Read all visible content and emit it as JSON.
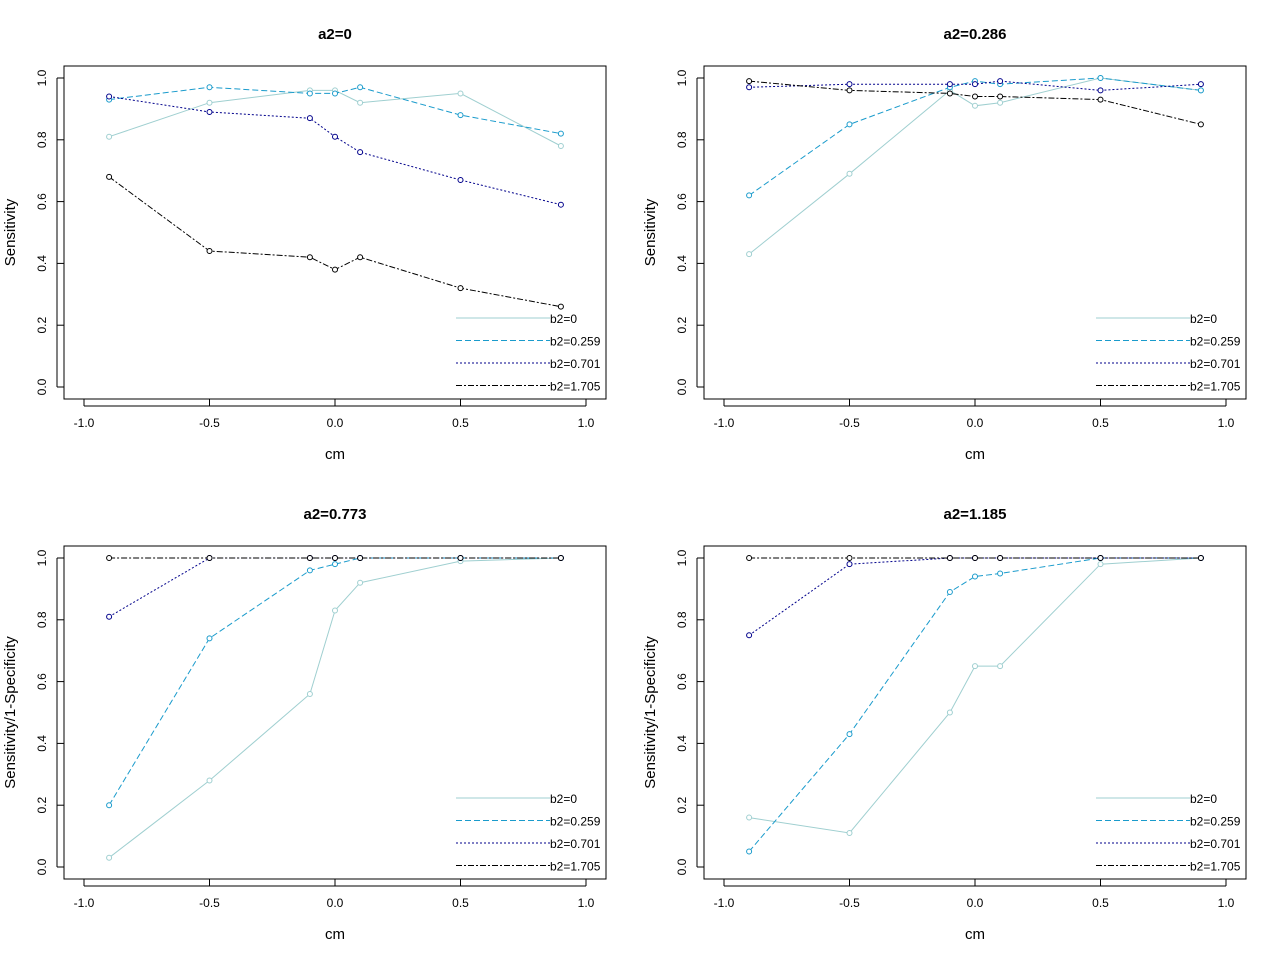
{
  "chart_data": [
    {
      "type": "line",
      "title": "a2=0",
      "xlabel": "cm",
      "ylabel": "Sensitivity",
      "xlim": [
        -1.0,
        1.0
      ],
      "ylim": [
        0.0,
        1.0
      ],
      "xticks": [
        "-1.0",
        "-0.5",
        "0.0",
        "0.5",
        "1.0"
      ],
      "yticks": [
        "0.0",
        "0.2",
        "0.4",
        "0.6",
        "0.8",
        "1.0"
      ],
      "x": [
        -0.9,
        -0.5,
        -0.1,
        0.0,
        0.1,
        0.5,
        0.9
      ],
      "legend_position": "bottom-right",
      "series": [
        {
          "name": "b2=0",
          "values": [
            0.81,
            0.92,
            0.96,
            0.96,
            0.92,
            0.95,
            0.78
          ]
        },
        {
          "name": "b2=0.259",
          "values": [
            0.93,
            0.97,
            0.95,
            0.95,
            0.97,
            0.88,
            0.82
          ]
        },
        {
          "name": "b2=0.701",
          "values": [
            0.94,
            0.89,
            0.87,
            0.81,
            0.76,
            0.67,
            0.59
          ]
        },
        {
          "name": "b2=1.705",
          "values": [
            0.68,
            0.44,
            0.42,
            0.38,
            0.42,
            0.32,
            0.26
          ]
        }
      ]
    },
    {
      "type": "line",
      "title": "a2=0.286",
      "xlabel": "cm",
      "ylabel": "Sensitivity",
      "xlim": [
        -1.0,
        1.0
      ],
      "ylim": [
        0.0,
        1.0
      ],
      "xticks": [
        "-1.0",
        "-0.5",
        "0.0",
        "0.5",
        "1.0"
      ],
      "yticks": [
        "0.0",
        "0.2",
        "0.4",
        "0.6",
        "0.8",
        "1.0"
      ],
      "x": [
        -0.9,
        -0.5,
        -0.1,
        0.0,
        0.1,
        0.5,
        0.9
      ],
      "legend_position": "bottom-right",
      "series": [
        {
          "name": "b2=0",
          "values": [
            0.43,
            0.69,
            0.96,
            0.91,
            0.92,
            1.0,
            0.96
          ]
        },
        {
          "name": "b2=0.259",
          "values": [
            0.62,
            0.85,
            0.97,
            0.99,
            0.98,
            1.0,
            0.96
          ]
        },
        {
          "name": "b2=0.701",
          "values": [
            0.97,
            0.98,
            0.98,
            0.98,
            0.99,
            0.96,
            0.98
          ]
        },
        {
          "name": "b2=1.705",
          "values": [
            0.99,
            0.96,
            0.95,
            0.94,
            0.94,
            0.93,
            0.85
          ]
        }
      ]
    },
    {
      "type": "line",
      "title": "a2=0.773",
      "xlabel": "cm",
      "ylabel": "Sensitivity/1-Specificity",
      "xlim": [
        -1.0,
        1.0
      ],
      "ylim": [
        0.0,
        1.0
      ],
      "xticks": [
        "-1.0",
        "-0.5",
        "0.0",
        "0.5",
        "1.0"
      ],
      "yticks": [
        "0.0",
        "0.2",
        "0.4",
        "0.6",
        "0.8",
        "1.0"
      ],
      "x": [
        -0.9,
        -0.5,
        -0.1,
        0.0,
        0.1,
        0.5,
        0.9
      ],
      "legend_position": "bottom-right",
      "series": [
        {
          "name": "b2=0",
          "values": [
            0.03,
            0.28,
            0.56,
            0.83,
            0.92,
            0.99,
            1.0
          ]
        },
        {
          "name": "b2=0.259",
          "values": [
            0.2,
            0.74,
            0.96,
            0.98,
            1.0,
            1.0,
            1.0
          ]
        },
        {
          "name": "b2=0.701",
          "values": [
            0.81,
            1.0,
            1.0,
            1.0,
            1.0,
            1.0,
            1.0
          ]
        },
        {
          "name": "b2=1.705",
          "values": [
            1.0,
            1.0,
            1.0,
            1.0,
            1.0,
            1.0,
            1.0
          ]
        }
      ]
    },
    {
      "type": "line",
      "title": "a2=1.185",
      "xlabel": "cm",
      "ylabel": "Sensitivity/1-Specificity",
      "xlim": [
        -1.0,
        1.0
      ],
      "ylim": [
        0.0,
        1.0
      ],
      "xticks": [
        "-1.0",
        "-0.5",
        "0.0",
        "0.5",
        "1.0"
      ],
      "yticks": [
        "0.0",
        "0.2",
        "0.4",
        "0.6",
        "0.8",
        "1.0"
      ],
      "x": [
        -0.9,
        -0.5,
        -0.1,
        0.0,
        0.1,
        0.5,
        0.9
      ],
      "legend_position": "bottom-right",
      "series": [
        {
          "name": "b2=0",
          "values": [
            0.16,
            0.11,
            0.5,
            0.65,
            0.65,
            0.98,
            1.0
          ]
        },
        {
          "name": "b2=0.259",
          "values": [
            0.05,
            0.43,
            0.89,
            0.94,
            0.95,
            1.0,
            1.0
          ]
        },
        {
          "name": "b2=0.701",
          "values": [
            0.75,
            0.98,
            1.0,
            1.0,
            1.0,
            1.0,
            1.0
          ]
        },
        {
          "name": "b2=1.705",
          "values": [
            1.0,
            1.0,
            1.0,
            1.0,
            1.0,
            1.0,
            1.0
          ]
        }
      ]
    }
  ],
  "series_styles": [
    {
      "color": "#9fcfd0",
      "dash": ""
    },
    {
      "color": "#1a9bcc",
      "dash": "6,3"
    },
    {
      "color": "#00008b",
      "dash": "2,2"
    },
    {
      "color": "#000000",
      "dash": "6,2,2,2"
    }
  ]
}
